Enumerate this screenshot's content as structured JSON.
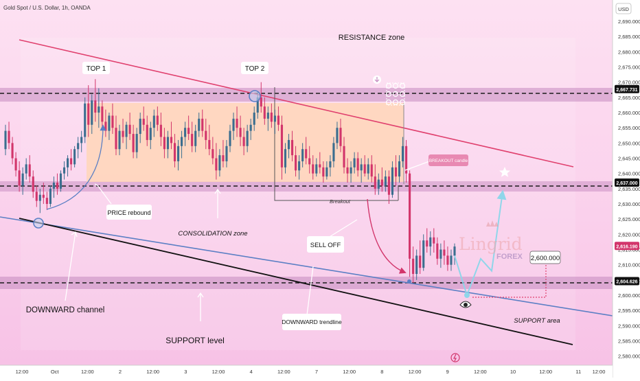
{
  "header": {
    "symbol": "Gold Spot / U.S. Dollar, 1h, OANDA",
    "currency": "USD"
  },
  "chart_data": {
    "type": "candlestick",
    "title": "Gold Spot / U.S. Dollar, 1h, OANDA",
    "ylim": [
      2577,
      2697
    ],
    "y_ticks": [
      2580,
      2585,
      2590,
      2595,
      2600,
      2605,
      2610,
      2615,
      2620,
      2625,
      2630,
      2635,
      2640,
      2645,
      2650,
      2655,
      2660,
      2665,
      2670,
      2675,
      2680,
      2685,
      2690
    ],
    "x_ticks": [
      "12:00",
      "Oct",
      "12:00",
      "2",
      "12:00",
      "3",
      "12:00",
      "4",
      "12:00",
      "7",
      "12:00",
      "8",
      "12:00",
      "9",
      "12:00",
      "10",
      "12:00",
      "11",
      "12:00"
    ],
    "price_levels": [
      {
        "label": "2,667.731",
        "value": 2667.731,
        "style": "dashed"
      },
      {
        "label": "2,637.000",
        "value": 2637.0,
        "style": "dashed"
      },
      {
        "label": "2,604.626",
        "value": 2604.626,
        "style": "dashed"
      }
    ],
    "last_price": {
      "label": "2,616.190",
      "value": 2616.19
    },
    "projected_target": {
      "label": "2,600.000",
      "value": 2600.0
    },
    "annotations": [
      "RESISTANCE zone",
      "TOP 1",
      "TOP 2",
      "BREAKOUT candle",
      "PRICE rebound",
      "CONSOLIDATION zone",
      "Breakout",
      "SELL OFF",
      "DOWNWARD channel",
      "DOWNWARD trendline",
      "SUPPORT level",
      "SUPPORT area"
    ],
    "candles": [
      [
        2648,
        2656,
        2646,
        2654
      ],
      [
        2654,
        2657,
        2648,
        2650
      ],
      [
        2650,
        2652,
        2643,
        2645
      ],
      [
        2645,
        2647,
        2639,
        2641
      ],
      [
        2641,
        2644,
        2634,
        2636
      ],
      [
        2636,
        2642,
        2633,
        2640
      ],
      [
        2640,
        2645,
        2638,
        2643
      ],
      [
        2643,
        2646,
        2637,
        2639
      ],
      [
        2639,
        2641,
        2632,
        2634
      ],
      [
        2634,
        2636,
        2629,
        2631
      ],
      [
        2631,
        2635,
        2627,
        2633
      ],
      [
        2633,
        2637,
        2630,
        2632
      ],
      [
        2632,
        2634,
        2628,
        2630
      ],
      [
        2630,
        2636,
        2629,
        2635
      ],
      [
        2635,
        2639,
        2632,
        2637
      ],
      [
        2637,
        2640,
        2633,
        2635
      ],
      [
        2635,
        2641,
        2634,
        2640
      ],
      [
        2640,
        2644,
        2638,
        2642
      ],
      [
        2642,
        2646,
        2639,
        2645
      ],
      [
        2645,
        2648,
        2641,
        2643
      ],
      [
        2643,
        2649,
        2642,
        2648
      ],
      [
        2648,
        2652,
        2645,
        2650
      ],
      [
        2650,
        2654,
        2647,
        2652
      ],
      [
        2652,
        2665,
        2650,
        2663
      ],
      [
        2663,
        2669,
        2652,
        2656
      ],
      [
        2656,
        2666,
        2653,
        2664
      ],
      [
        2664,
        2671,
        2657,
        2660
      ],
      [
        2660,
        2668,
        2655,
        2662
      ],
      [
        2662,
        2664,
        2655,
        2657
      ],
      [
        2657,
        2661,
        2652,
        2654
      ],
      [
        2654,
        2660,
        2651,
        2659
      ],
      [
        2659,
        2663,
        2653,
        2655
      ],
      [
        2655,
        2659,
        2646,
        2648
      ],
      [
        2648,
        2656,
        2646,
        2654
      ],
      [
        2654,
        2658,
        2650,
        2652
      ],
      [
        2652,
        2657,
        2648,
        2656
      ],
      [
        2656,
        2660,
        2651,
        2653
      ],
      [
        2653,
        2656,
        2645,
        2647
      ],
      [
        2647,
        2655,
        2645,
        2653
      ],
      [
        2653,
        2660,
        2650,
        2658
      ],
      [
        2658,
        2662,
        2654,
        2656
      ],
      [
        2656,
        2659,
        2649,
        2651
      ],
      [
        2651,
        2657,
        2648,
        2655
      ],
      [
        2655,
        2661,
        2652,
        2659
      ],
      [
        2659,
        2662,
        2654,
        2656
      ],
      [
        2656,
        2660,
        2649,
        2652
      ],
      [
        2652,
        2655,
        2645,
        2648
      ],
      [
        2648,
        2654,
        2645,
        2652
      ],
      [
        2652,
        2657,
        2648,
        2650
      ],
      [
        2650,
        2653,
        2642,
        2644
      ],
      [
        2644,
        2651,
        2641,
        2649
      ],
      [
        2649,
        2654,
        2645,
        2652
      ],
      [
        2652,
        2657,
        2649,
        2655
      ],
      [
        2655,
        2659,
        2651,
        2653
      ],
      [
        2653,
        2657,
        2647,
        2649
      ],
      [
        2649,
        2656,
        2647,
        2654
      ],
      [
        2654,
        2660,
        2652,
        2658
      ],
      [
        2658,
        2661,
        2652,
        2654
      ],
      [
        2654,
        2658,
        2648,
        2651
      ],
      [
        2651,
        2656,
        2646,
        2648
      ],
      [
        2648,
        2652,
        2643,
        2645
      ],
      [
        2645,
        2650,
        2638,
        2641
      ],
      [
        2641,
        2648,
        2639,
        2646
      ],
      [
        2646,
        2651,
        2642,
        2644
      ],
      [
        2644,
        2651,
        2642,
        2649
      ],
      [
        2649,
        2656,
        2647,
        2654
      ],
      [
        2654,
        2660,
        2651,
        2658
      ],
      [
        2658,
        2662,
        2652,
        2655
      ],
      [
        2655,
        2659,
        2649,
        2652
      ],
      [
        2652,
        2655,
        2646,
        2649
      ],
      [
        2649,
        2656,
        2647,
        2654
      ],
      [
        2654,
        2658,
        2651,
        2656
      ],
      [
        2656,
        2662,
        2654,
        2660
      ],
      [
        2660,
        2667,
        2658,
        2665
      ],
      [
        2665,
        2670,
        2660,
        2662
      ],
      [
        2662,
        2665,
        2656,
        2658
      ],
      [
        2658,
        2662,
        2654,
        2660
      ],
      [
        2660,
        2663,
        2655,
        2657
      ],
      [
        2657,
        2661,
        2653,
        2659
      ],
      [
        2659,
        2662,
        2654,
        2656
      ],
      [
        2656,
        2659,
        2638,
        2642
      ],
      [
        2642,
        2650,
        2640,
        2648
      ],
      [
        2648,
        2653,
        2645,
        2651
      ],
      [
        2651,
        2654,
        2644,
        2646
      ],
      [
        2646,
        2649,
        2639,
        2641
      ],
      [
        2641,
        2646,
        2638,
        2644
      ],
      [
        2644,
        2650,
        2642,
        2648
      ],
      [
        2648,
        2652,
        2643,
        2645
      ],
      [
        2645,
        2649,
        2640,
        2643
      ],
      [
        2643,
        2646,
        2638,
        2640
      ],
      [
        2640,
        2645,
        2639,
        2643
      ],
      [
        2643,
        2647,
        2640,
        2642
      ],
      [
        2642,
        2644,
        2637,
        2639
      ],
      [
        2639,
        2644,
        2638,
        2642
      ],
      [
        2642,
        2646,
        2639,
        2644
      ],
      [
        2644,
        2652,
        2642,
        2650
      ],
      [
        2650,
        2657,
        2648,
        2655
      ],
      [
        2655,
        2658,
        2647,
        2649
      ],
      [
        2649,
        2652,
        2640,
        2642
      ],
      [
        2642,
        2645,
        2637,
        2640
      ],
      [
        2640,
        2644,
        2637,
        2642
      ],
      [
        2642,
        2647,
        2640,
        2645
      ],
      [
        2645,
        2647,
        2639,
        2641
      ],
      [
        2641,
        2645,
        2637,
        2643
      ],
      [
        2643,
        2646,
        2639,
        2640
      ],
      [
        2640,
        2645,
        2638,
        2643
      ],
      [
        2643,
        2646,
        2637,
        2639
      ],
      [
        2639,
        2643,
        2633,
        2635
      ],
      [
        2635,
        2640,
        2633,
        2638
      ],
      [
        2638,
        2642,
        2634,
        2636
      ],
      [
        2636,
        2641,
        2634,
        2639
      ],
      [
        2639,
        2641,
        2630,
        2633
      ],
      [
        2633,
        2644,
        2632,
        2642
      ],
      [
        2642,
        2646,
        2636,
        2639
      ],
      [
        2639,
        2646,
        2637,
        2644
      ],
      [
        2644,
        2652,
        2642,
        2649
      ],
      [
        2649,
        2651,
        2637,
        2640
      ],
      [
        2640,
        2641,
        2606,
        2612
      ],
      [
        2612,
        2616,
        2604,
        2607
      ],
      [
        2607,
        2615,
        2605,
        2613
      ],
      [
        2613,
        2618,
        2607,
        2609
      ],
      [
        2609,
        2620,
        2608,
        2618
      ],
      [
        2618,
        2622,
        2614,
        2616
      ],
      [
        2616,
        2621,
        2613,
        2619
      ],
      [
        2619,
        2622,
        2614,
        2617
      ],
      [
        2617,
        2619,
        2610,
        2612
      ],
      [
        2612,
        2617,
        2609,
        2615
      ],
      [
        2615,
        2618,
        2610,
        2613
      ],
      [
        2613,
        2616,
        2608,
        2610
      ],
      [
        2610,
        2615,
        2608,
        2613
      ],
      [
        2613,
        2617,
        2610,
        2616
      ]
    ]
  },
  "projected_path": [
    {
      "x": 2613,
      "y": 2613
    },
    {
      "x": 2600,
      "y": 2600
    },
    {
      "x": 2612,
      "y": 2612
    },
    {
      "x": 2608,
      "y": 2608
    },
    {
      "x": 2634,
      "y": 2634
    }
  ],
  "colors": {
    "up": "#3b6e8f",
    "down": "#d2356b",
    "resistance_line": "#e0406e",
    "trendline": "#5b7fc4",
    "channel_line": "#111111",
    "projection": "#8fd6ea",
    "level_band": "#c58ac0",
    "consolidation_fill": "#ffd6b8",
    "background": "#fbd0ec"
  },
  "watermark": {
    "brand": "Lingrid",
    "sub": "FOREX"
  }
}
